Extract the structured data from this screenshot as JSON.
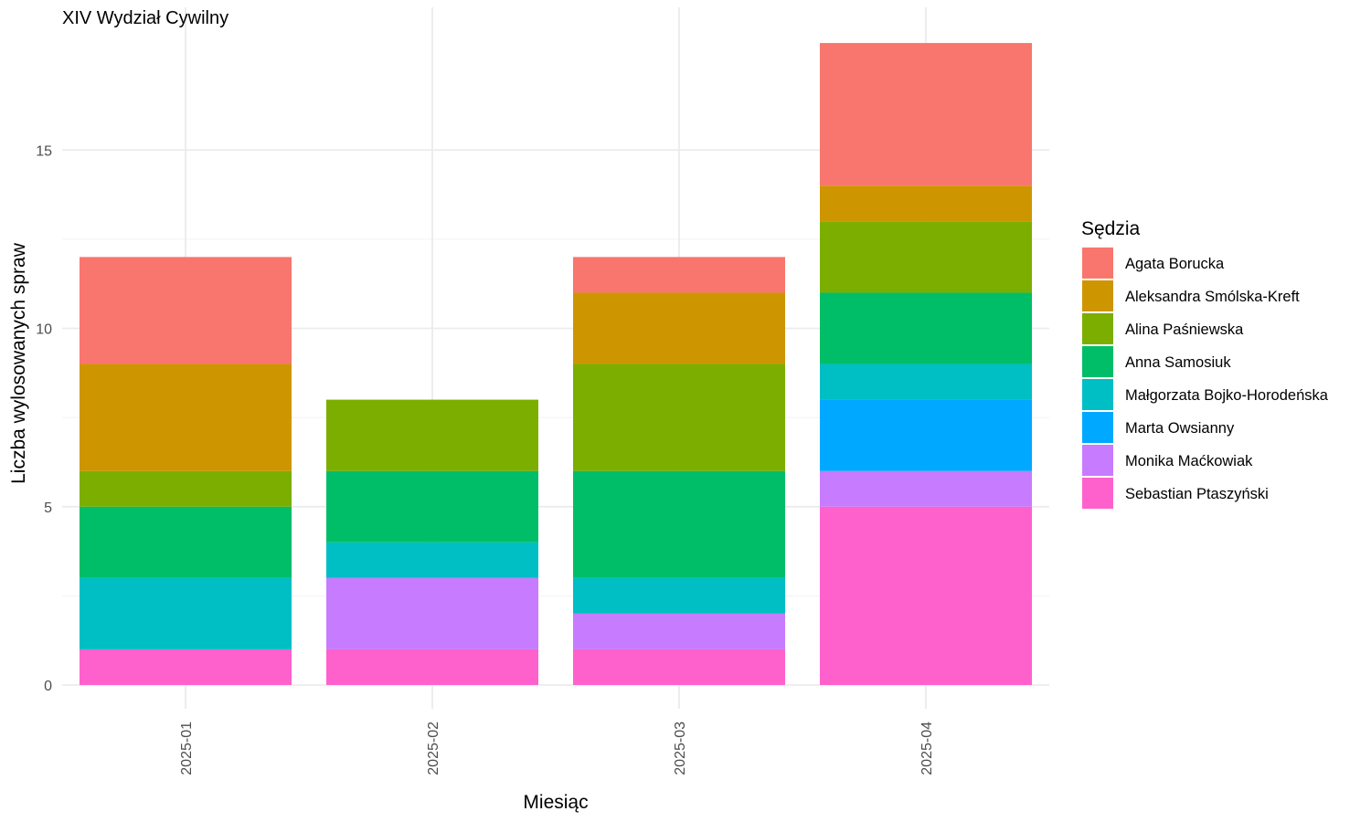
{
  "chart_data": {
    "type": "bar",
    "stacked": true,
    "title": "XIV Wydział Cywilny",
    "xlabel": "Miesiąc",
    "ylabel": "Liczba wylosowanych spraw",
    "ylim": [
      0,
      18
    ],
    "yticks": [
      0,
      5,
      10,
      15
    ],
    "grid": true,
    "legend_position": "right",
    "legend_title": "Sędzia",
    "categories": [
      "2025-01",
      "2025-02",
      "2025-03",
      "2025-04"
    ],
    "series": [
      {
        "name": "Agata Borucka",
        "color": "#F8766D",
        "values": [
          3,
          0,
          1,
          4
        ]
      },
      {
        "name": "Aleksandra Smólska-Kreft",
        "color": "#CD9600",
        "values": [
          3,
          0,
          2,
          1
        ]
      },
      {
        "name": "Alina Paśniewska",
        "color": "#7CAE00",
        "values": [
          1,
          2,
          3,
          2
        ]
      },
      {
        "name": "Anna Samosiuk",
        "color": "#00BE67",
        "values": [
          2,
          2,
          3,
          2
        ]
      },
      {
        "name": "Małgorzata Bojko-Horodeńska",
        "color": "#00BFC4",
        "values": [
          2,
          1,
          1,
          1
        ]
      },
      {
        "name": "Marta Owsianny",
        "color": "#00A9FF",
        "values": [
          0,
          0,
          0,
          2
        ]
      },
      {
        "name": "Monika Maćkowiak",
        "color": "#C77CFF",
        "values": [
          0,
          2,
          1,
          1
        ]
      },
      {
        "name": "Sebastian Ptaszyński",
        "color": "#FF61CC",
        "values": [
          1,
          1,
          1,
          5
        ]
      }
    ]
  }
}
